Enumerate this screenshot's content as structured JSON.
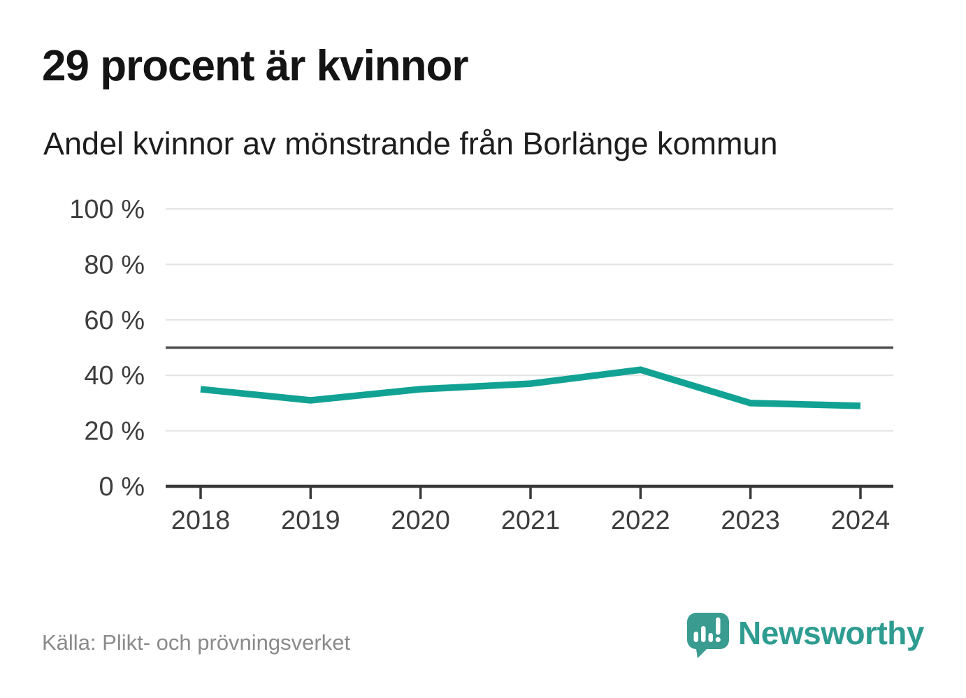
{
  "header": {
    "title": "29 procent är kvinnor",
    "subtitle": "Andel kvinnor av mönstrande från Borlänge kommun"
  },
  "chart_data": {
    "type": "line",
    "title": "29 procent är kvinnor",
    "subtitle": "Andel kvinnor av mönstrande från Borlänge kommun",
    "categories": [
      "2018",
      "2019",
      "2020",
      "2021",
      "2022",
      "2023",
      "2024"
    ],
    "series": [
      {
        "name": "Andel kvinnor av mönstrande",
        "values": [
          35,
          31,
          35,
          37,
          42,
          30,
          29
        ],
        "color": "#11a294"
      }
    ],
    "xlabel": "",
    "ylabel": "",
    "ylim": [
      0,
      100
    ],
    "yticks": [
      0,
      20,
      40,
      60,
      80,
      100
    ],
    "ytick_suffix": " %",
    "reference_line": {
      "value": 50,
      "color": "#4d4d4d"
    },
    "grid": true,
    "gridline_color": "#e3e3e3",
    "axis_color": "#383838",
    "tick_label_color": "#3d3d3d",
    "legend_position": "none"
  },
  "footer": {
    "source": "Källa: Plikt- och prövningsverket"
  },
  "logo": {
    "text": "Newsworthy",
    "icon": "newsworthy-speech-bubble-chart-icon",
    "icon_color": "#3a9b90",
    "icon_bar_color": "#ffffff",
    "text_color": "#2e9c91"
  }
}
